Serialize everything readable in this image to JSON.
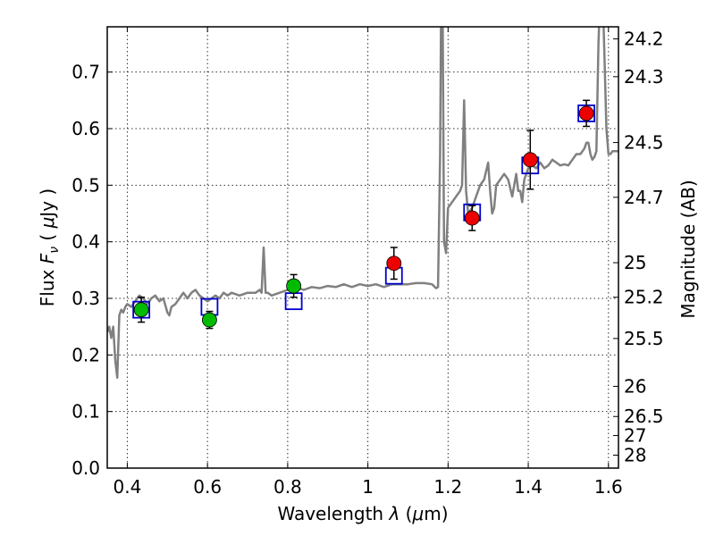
{
  "chart_data": {
    "type": "scatter",
    "xlabel_prefix": "Wavelength  ",
    "xlabel_symbol": "λ",
    "xlabel_unit_open": " (",
    "xlabel_unit_mu": "μ",
    "xlabel_unit_close": "m)",
    "ylabel_prefix": "Flux  ",
    "ylabel_symbol": "F",
    "ylabel_sub": "ν",
    "ylabel_unit_open": "  ( ",
    "ylabel_unit_mu": "μ",
    "ylabel_unit_close": "Jy )",
    "y2label": "Magnitude (AB)",
    "xlim": [
      0.35,
      1.625
    ],
    "ylim": [
      0.0,
      0.78
    ],
    "xticks": [
      0.4,
      0.6,
      0.8,
      1.0,
      1.2,
      1.4,
      1.6
    ],
    "xtick_labels": [
      "0.4",
      "0.6",
      "0.8",
      "1",
      "1.2",
      "1.4",
      "1.6"
    ],
    "yticks": [
      0.0,
      0.1,
      0.2,
      0.3,
      0.4,
      0.5,
      0.6,
      0.7
    ],
    "ytick_labels": [
      "0.0",
      "0.1",
      "0.2",
      "0.3",
      "0.4",
      "0.5",
      "0.6",
      "0.7"
    ],
    "y2ticks": [
      24.2,
      24.3,
      24.5,
      24.7,
      25.0,
      25.2,
      25.5,
      26.0,
      26.5,
      27.0,
      28.0
    ],
    "y2tick_labels": [
      "24.2",
      "24.3",
      "24.5",
      "24.7",
      "25",
      "25.2",
      "25.5",
      "26",
      "26.5",
      "27",
      "28"
    ],
    "grid": true,
    "colors": {
      "model_spectrum": "#808080",
      "model_photometry": "#0000cc",
      "optical_points": "#00bb00",
      "nir_points": "#ee0000",
      "errorbar": "#000000"
    },
    "series": [
      {
        "type": "line",
        "values": [
          [
            0.35,
            0.24
          ],
          [
            0.355,
            0.25
          ],
          [
            0.36,
            0.23
          ],
          [
            0.365,
            0.25
          ],
          [
            0.37,
            0.19
          ],
          [
            0.375,
            0.16
          ],
          [
            0.38,
            0.27
          ],
          [
            0.385,
            0.28
          ],
          [
            0.39,
            0.275
          ],
          [
            0.395,
            0.285
          ],
          [
            0.4,
            0.29
          ],
          [
            0.41,
            0.285
          ],
          [
            0.42,
            0.295
          ],
          [
            0.43,
            0.305
          ],
          [
            0.44,
            0.3
          ],
          [
            0.45,
            0.29
          ],
          [
            0.46,
            0.3
          ],
          [
            0.47,
            0.305
          ],
          [
            0.48,
            0.295
          ],
          [
            0.49,
            0.3
          ],
          [
            0.5,
            0.275
          ],
          [
            0.505,
            0.27
          ],
          [
            0.51,
            0.285
          ],
          [
            0.52,
            0.29
          ],
          [
            0.53,
            0.3
          ],
          [
            0.54,
            0.31
          ],
          [
            0.55,
            0.3
          ],
          [
            0.56,
            0.31
          ],
          [
            0.57,
            0.315
          ],
          [
            0.58,
            0.305
          ],
          [
            0.59,
            0.3
          ],
          [
            0.6,
            0.295
          ],
          [
            0.61,
            0.3
          ],
          [
            0.62,
            0.305
          ],
          [
            0.63,
            0.3
          ],
          [
            0.64,
            0.31
          ],
          [
            0.65,
            0.305
          ],
          [
            0.66,
            0.31
          ],
          [
            0.68,
            0.305
          ],
          [
            0.7,
            0.31
          ],
          [
            0.72,
            0.31
          ],
          [
            0.73,
            0.315
          ],
          [
            0.735,
            0.31
          ],
          [
            0.74,
            0.39
          ],
          [
            0.745,
            0.31
          ],
          [
            0.75,
            0.31
          ],
          [
            0.76,
            0.305
          ],
          [
            0.78,
            0.31
          ],
          [
            0.8,
            0.315
          ],
          [
            0.82,
            0.32
          ],
          [
            0.84,
            0.315
          ],
          [
            0.86,
            0.32
          ],
          [
            0.88,
            0.318
          ],
          [
            0.9,
            0.322
          ],
          [
            0.92,
            0.32
          ],
          [
            0.94,
            0.325
          ],
          [
            0.96,
            0.32
          ],
          [
            0.98,
            0.325
          ],
          [
            1.0,
            0.322
          ],
          [
            1.02,
            0.325
          ],
          [
            1.04,
            0.32
          ],
          [
            1.06,
            0.325
          ],
          [
            1.08,
            0.325
          ],
          [
            1.1,
            0.325
          ],
          [
            1.12,
            0.327
          ],
          [
            1.14,
            0.327
          ],
          [
            1.16,
            0.325
          ],
          [
            1.17,
            0.318
          ],
          [
            1.175,
            0.32
          ],
          [
            1.18,
            0.55
          ],
          [
            1.183,
            0.85
          ],
          [
            1.186,
            0.85
          ],
          [
            1.19,
            0.4
          ],
          [
            1.195,
            0.38
          ],
          [
            1.2,
            0.46
          ],
          [
            1.21,
            0.47
          ],
          [
            1.22,
            0.48
          ],
          [
            1.23,
            0.49
          ],
          [
            1.235,
            0.5
          ],
          [
            1.24,
            0.65
          ],
          [
            1.245,
            0.49
          ],
          [
            1.25,
            0.45
          ],
          [
            1.26,
            0.46
          ],
          [
            1.27,
            0.48
          ],
          [
            1.28,
            0.5
          ],
          [
            1.29,
            0.51
          ],
          [
            1.3,
            0.54
          ],
          [
            1.305,
            0.49
          ],
          [
            1.31,
            0.45
          ],
          [
            1.315,
            0.46
          ],
          [
            1.32,
            0.5
          ],
          [
            1.33,
            0.51
          ],
          [
            1.34,
            0.52
          ],
          [
            1.35,
            0.51
          ],
          [
            1.36,
            0.48
          ],
          [
            1.37,
            0.52
          ],
          [
            1.375,
            0.49
          ],
          [
            1.38,
            0.49
          ],
          [
            1.385,
            0.47
          ],
          [
            1.39,
            0.51
          ],
          [
            1.4,
            0.53
          ],
          [
            1.41,
            0.535
          ],
          [
            1.42,
            0.53
          ],
          [
            1.43,
            0.54
          ],
          [
            1.44,
            0.53
          ],
          [
            1.45,
            0.535
          ],
          [
            1.46,
            0.545
          ],
          [
            1.47,
            0.54
          ],
          [
            1.48,
            0.535
          ],
          [
            1.49,
            0.537
          ],
          [
            1.5,
            0.535
          ],
          [
            1.51,
            0.545
          ],
          [
            1.52,
            0.555
          ],
          [
            1.53,
            0.555
          ],
          [
            1.54,
            0.565
          ],
          [
            1.545,
            0.575
          ],
          [
            1.55,
            0.575
          ],
          [
            1.555,
            0.555
          ],
          [
            1.56,
            0.545
          ],
          [
            1.565,
            0.55
          ],
          [
            1.57,
            0.56
          ],
          [
            1.575,
            0.75
          ],
          [
            1.58,
            0.85
          ],
          [
            1.585,
            0.85
          ],
          [
            1.59,
            0.73
          ],
          [
            1.595,
            0.6
          ],
          [
            1.6,
            0.555
          ],
          [
            1.605,
            0.555
          ],
          [
            1.61,
            0.56
          ],
          [
            1.625,
            0.56
          ]
        ]
      },
      {
        "type": "box",
        "values": [
          [
            0.435,
            0.28
          ],
          [
            0.605,
            0.285
          ],
          [
            0.815,
            0.295
          ],
          [
            1.065,
            0.34
          ],
          [
            1.26,
            0.452
          ],
          [
            1.405,
            0.535
          ],
          [
            1.545,
            0.627
          ]
        ]
      },
      {
        "type": "points",
        "values": [
          [
            0.435,
            0.28,
            0.022
          ],
          [
            0.605,
            0.262,
            0.015
          ],
          [
            0.815,
            0.322,
            0.02
          ]
        ]
      },
      {
        "type": "points",
        "values": [
          [
            1.065,
            0.362,
            0.028
          ],
          [
            1.26,
            0.442,
            0.022
          ],
          [
            1.405,
            0.545,
            0.052
          ],
          [
            1.545,
            0.627,
            0.023
          ]
        ]
      }
    ]
  }
}
